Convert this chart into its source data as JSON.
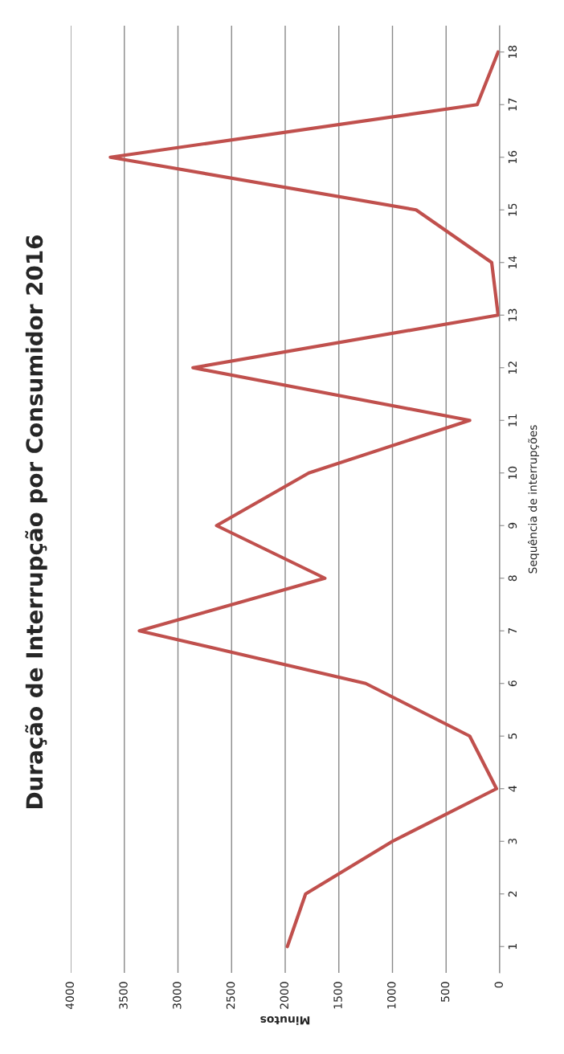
{
  "chart_data": {
    "type": "line",
    "orientation": "horizontal",
    "title": "Duração de Interrupção por Consumidor 2016",
    "xlabel": "Minutos",
    "ylabel": "Sequência de interrupções",
    "categories": [
      "18",
      "17",
      "16",
      "15",
      "14",
      "13",
      "12",
      "11",
      "10",
      "9",
      "8",
      "7",
      "6",
      "5",
      "4",
      "3",
      "2",
      "1"
    ],
    "series": [
      {
        "color": "#c0504d",
        "values": [
          15,
          210,
          3630,
          780,
          75,
          15,
          2860,
          280,
          1780,
          2640,
          1630,
          3360,
          1250,
          280,
          30,
          1000,
          1810,
          1980
        ]
      }
    ],
    "xlim": [
      4000,
      0
    ],
    "xticks": [
      0,
      500,
      1000,
      1500,
      2000,
      2500,
      3000,
      3500,
      4000
    ],
    "grid": "x",
    "legend": false,
    "marker": "none",
    "line_style": "solid"
  }
}
